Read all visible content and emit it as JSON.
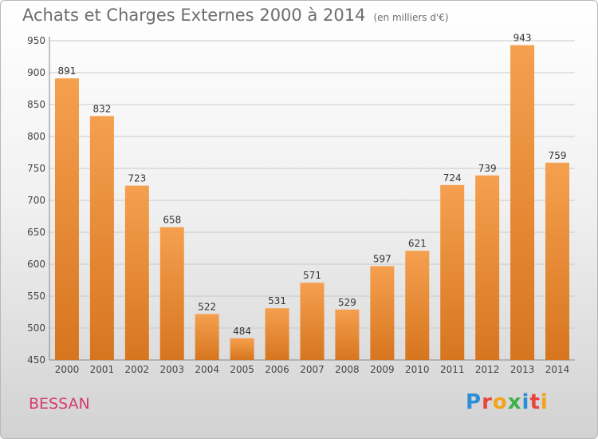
{
  "title": "Achats et Charges Externes 2000 à 2014",
  "subtitle": "(en milliers d'€)",
  "commune": "BESSAN",
  "logo": "Proxiti",
  "colors": {
    "bar_top": "#f5a04f",
    "bar_bottom": "#d7751f",
    "title": "#6d6d6d",
    "commune": "#d73a6b"
  },
  "chart_data": {
    "type": "bar",
    "categories": [
      "2000",
      "2001",
      "2002",
      "2003",
      "2004",
      "2005",
      "2006",
      "2007",
      "2008",
      "2009",
      "2010",
      "2011",
      "2012",
      "2013",
      "2014"
    ],
    "values": [
      891,
      832,
      723,
      658,
      522,
      484,
      531,
      571,
      529,
      597,
      621,
      724,
      739,
      943,
      759
    ],
    "ylim": [
      450,
      950
    ],
    "yticks": [
      450,
      500,
      550,
      600,
      650,
      700,
      750,
      800,
      850,
      900,
      950
    ],
    "grid": true,
    "data_labels": true
  }
}
